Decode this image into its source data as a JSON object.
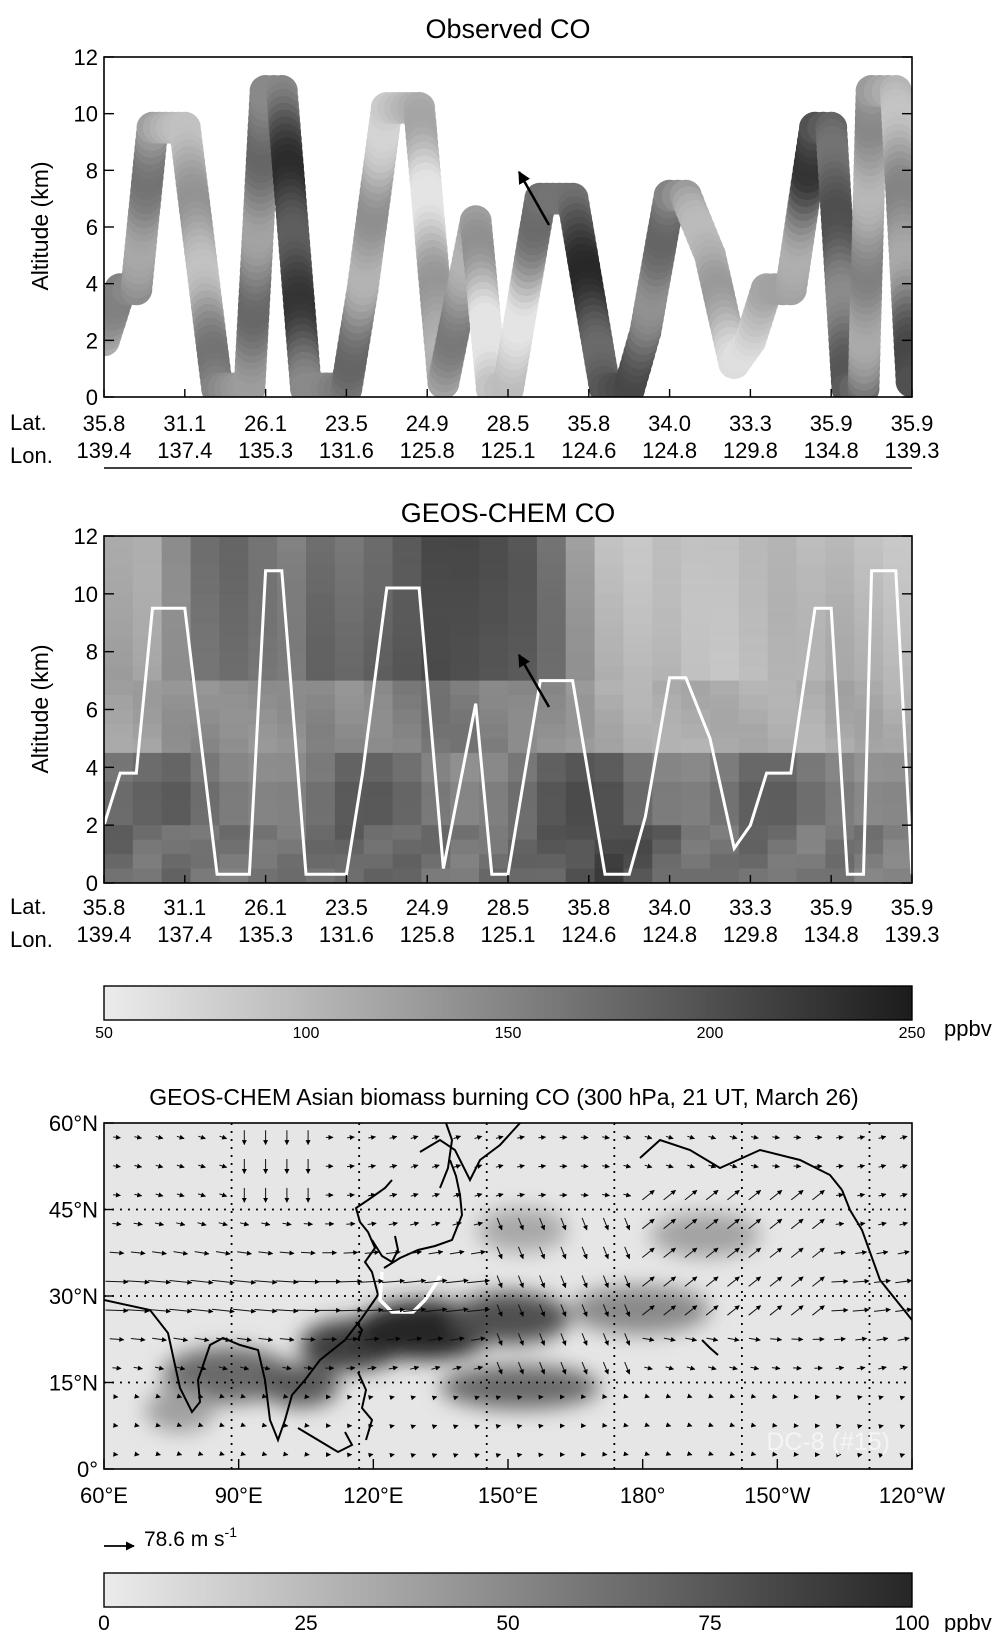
{
  "colors": {
    "background": "#ffffff",
    "axis": "#000000",
    "track": "#ffffff"
  },
  "chart_data": [
    {
      "type": "scatter",
      "title": "Observed CO",
      "ylabel": "Altitude (km)",
      "ylim": [
        0,
        12
      ],
      "yticks": [
        "0",
        "2",
        "4",
        "6",
        "8",
        "10",
        "12"
      ],
      "row_labels": {
        "lat": "Lat.",
        "lon": "Lon."
      },
      "lat_ticks": [
        "35.8",
        "31.1",
        "26.1",
        "23.5",
        "24.9",
        "28.5",
        "35.8",
        "34.0",
        "33.3",
        "35.9",
        "35.9"
      ],
      "lon_ticks": [
        "139.4",
        "137.4",
        "135.3",
        "131.6",
        "125.8",
        "125.1",
        "124.6",
        "124.8",
        "129.8",
        "134.8",
        "139.3"
      ],
      "color_scale": {
        "min": 50,
        "max": 250,
        "unit": "ppbv",
        "colormap": "gray_reversed"
      },
      "flight_track": {
        "x_fraction": [
          0,
          0.02,
          0.04,
          0.06,
          0.1,
          0.14,
          0.18,
          0.2,
          0.22,
          0.25,
          0.3,
          0.32,
          0.35,
          0.39,
          0.42,
          0.46,
          0.48,
          0.5,
          0.54,
          0.58,
          0.62,
          0.65,
          0.67,
          0.7,
          0.72,
          0.75,
          0.78,
          0.8,
          0.82,
          0.85,
          0.88,
          0.9,
          0.92,
          0.94,
          0.95,
          0.98,
          1.0
        ],
        "altitude_km": [
          2,
          3.8,
          3.8,
          9.5,
          9.5,
          0.3,
          0.3,
          10.8,
          10.8,
          0.3,
          0.3,
          3.8,
          10.2,
          10.2,
          0.5,
          6.2,
          0.3,
          0.3,
          7.0,
          7.0,
          0.3,
          0.3,
          2.3,
          7.1,
          7.1,
          5.0,
          1.2,
          2,
          3.8,
          3.8,
          9.5,
          9.5,
          0.3,
          0.3,
          10.8,
          10.8,
          0.3
        ]
      },
      "co_ppbv_along_track": [
        110,
        130,
        125,
        130,
        140,
        175,
        210,
        190,
        170,
        80,
        70,
        150,
        115,
        70,
        95,
        200,
        215,
        175,
        80,
        90,
        210,
        160,
        190,
        120,
        95,
        150,
        200
      ],
      "annotation": "arrow at ~8 km on third plateau"
    },
    {
      "type": "heatmap",
      "title": "GEOS-CHEM CO",
      "ylabel": "Altitude (km)",
      "ylim": [
        0,
        12
      ],
      "yticks": [
        "0",
        "2",
        "4",
        "6",
        "8",
        "10",
        "12"
      ],
      "row_labels": {
        "lat": "Lat.",
        "lon": "Lon."
      },
      "lat_ticks": [
        "35.8",
        "31.1",
        "26.1",
        "23.5",
        "24.9",
        "28.5",
        "35.8",
        "34.0",
        "33.3",
        "35.9",
        "35.9"
      ],
      "lon_ticks": [
        "139.4",
        "137.4",
        "135.3",
        "131.6",
        "125.8",
        "125.1",
        "124.6",
        "124.8",
        "129.8",
        "134.8",
        "139.3"
      ],
      "colorbar": {
        "min": 50,
        "max": 250,
        "ticks": [
          "50",
          "100",
          "150",
          "200",
          "250"
        ],
        "unit": "ppbv"
      },
      "upper_tropo_co_ppbv": [
        120,
        115,
        145,
        170,
        175,
        160,
        150,
        175,
        170,
        185,
        200,
        215,
        210,
        200,
        190,
        165,
        125,
        95,
        90,
        100,
        90,
        85,
        90,
        95,
        90,
        100,
        95,
        90
      ],
      "boundary_layer_co_ppbv": [
        180,
        170,
        175,
        160,
        165,
        170,
        165,
        170,
        185,
        180,
        175,
        170,
        165,
        170,
        175,
        190,
        205,
        215,
        200,
        185,
        170,
        165,
        175,
        170,
        160,
        165,
        160,
        155
      ]
    },
    {
      "type": "heatmap",
      "title": "GEOS-CHEM Asian biomass burning CO (300 hPa, 21 UT, March 26)",
      "x_ticks": [
        "60°E",
        "90°E",
        "120°E",
        "150°E",
        "180°",
        "150°W",
        "120°W"
      ],
      "y_ticks": [
        "0°",
        "15°N",
        "30°N",
        "45°N",
        "60°N"
      ],
      "lon_range": [
        60,
        250
      ],
      "lat_range": [
        0,
        60
      ],
      "label": "DC-8 (#15)",
      "wind_legend": "78.6 m s",
      "wind_legend_exponent": "-1",
      "colorbar": {
        "min": 0,
        "max": 100,
        "ticks": [
          "0",
          "25",
          "50",
          "75",
          "100"
        ],
        "unit": "ppbv"
      }
    }
  ]
}
